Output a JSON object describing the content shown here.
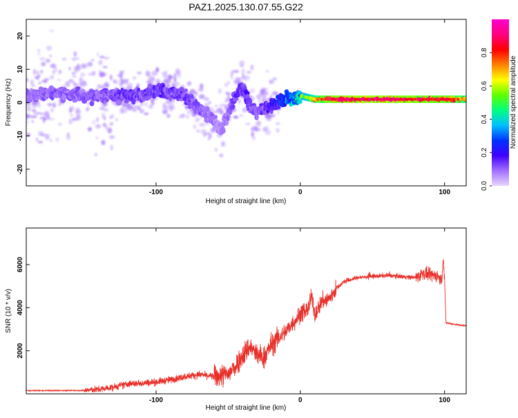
{
  "page_title": "PAZ1.2025.130.07.55.G22",
  "chart_data": [
    {
      "type": "heatmap",
      "title": "PAZ1.2025.130.07.55.G22",
      "xlabel": "Height of straight line (km)",
      "ylabel": "Frequency (Hz)",
      "xlim": [
        -190,
        115
      ],
      "ylim": [
        -25,
        25
      ],
      "x_ticks": [
        -100,
        0,
        100
      ],
      "y_ticks": [
        -20,
        -10,
        0,
        10,
        20
      ],
      "x_tick_labels": [
        "-100",
        "0",
        "100"
      ],
      "y_tick_labels": [
        "-20",
        "-10",
        "0",
        "10",
        "20"
      ],
      "colorbar": {
        "label": "Normalized spectral amplitude",
        "range": [
          0,
          1
        ],
        "ticks": [
          0.0,
          0.2,
          0.4,
          0.6,
          0.8
        ],
        "tick_labels": [
          "0.0",
          "0.2",
          "0.4",
          "0.6",
          "0.8"
        ],
        "colormap": [
          "#e8d5ff",
          "#a070ff",
          "#4000ff",
          "#0033ff",
          "#00c0ff",
          "#00ff80",
          "#60ff00",
          "#ffff00",
          "#ff8000",
          "#ff0000",
          "#ff0080",
          "#ff00cc"
        ]
      },
      "ridge": {
        "x": [
          -190,
          -170,
          -150,
          -130,
          -110,
          -100,
          -90,
          -80,
          -70,
          -60,
          -55,
          -50,
          -45,
          -40,
          -35,
          -30,
          -25,
          -20,
          -15,
          -10,
          -5,
          0,
          10,
          20,
          40,
          60,
          80,
          100,
          115
        ],
        "freq": [
          2,
          3,
          2,
          2,
          2,
          4,
          3,
          2,
          -2,
          -5,
          -8,
          -3,
          2,
          5,
          -1,
          -3,
          -2,
          -1,
          0,
          1,
          1,
          2,
          1,
          1,
          1,
          1,
          1,
          1,
          1
        ],
        "peak_amplitude": [
          0.1,
          0.12,
          0.12,
          0.14,
          0.15,
          0.16,
          0.15,
          0.16,
          0.12,
          0.1,
          0.08,
          0.1,
          0.15,
          0.18,
          0.15,
          0.12,
          0.15,
          0.2,
          0.25,
          0.3,
          0.4,
          0.5,
          0.7,
          0.85,
          0.9,
          0.88,
          0.85,
          0.82,
          0.7
        ]
      }
    },
    {
      "type": "line",
      "xlabel": "Height of straight line (km)",
      "ylabel": "SNR (10 * v/v)",
      "xlim": [
        -190,
        115
      ],
      "ylim": [
        0,
        7700
      ],
      "x_ticks": [
        -100,
        0,
        100
      ],
      "y_ticks": [
        2000,
        4000,
        6000
      ],
      "x_tick_labels": [
        "-100",
        "0",
        "100"
      ],
      "y_tick_labels": [
        "2000",
        "4000",
        "6000"
      ],
      "color": "#e8302a",
      "series": [
        {
          "x": [
            -190,
            -170,
            -150,
            -140,
            -130,
            -120,
            -110,
            -100,
            -90,
            -80,
            -70,
            -60,
            -50,
            -45,
            -40,
            -35,
            -30,
            -25,
            -20,
            -15,
            -10,
            -5,
            0,
            5,
            8,
            10,
            15,
            20,
            25,
            30,
            40,
            50,
            60,
            70,
            80,
            85,
            90,
            95,
            98,
            99,
            100,
            101,
            105,
            110,
            115
          ],
          "y": [
            150,
            150,
            160,
            200,
            300,
            450,
            500,
            550,
            650,
            800,
            900,
            800,
            900,
            1300,
            1800,
            2200,
            1800,
            1700,
            2300,
            2600,
            2900,
            3300,
            3700,
            3900,
            4500,
            3700,
            4300,
            4400,
            4900,
            5200,
            5400,
            5450,
            5500,
            5450,
            5400,
            5600,
            5500,
            5500,
            5200,
            6400,
            5300,
            3300,
            3250,
            3200,
            3150
          ]
        }
      ]
    }
  ]
}
